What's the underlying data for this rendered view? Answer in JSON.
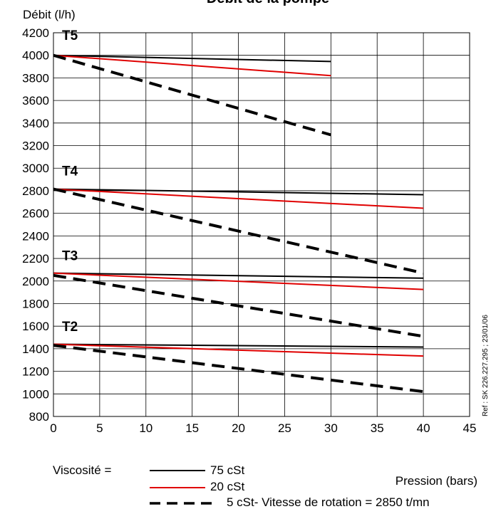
{
  "chart_data": {
    "type": "line",
    "title": "Débit de la pompe",
    "ylabel": "Débit (l/h)",
    "xlabel": "Pression (bars)",
    "xlim": [
      0,
      45
    ],
    "ylim": [
      800,
      4200
    ],
    "x_ticks": [
      0,
      5,
      10,
      15,
      20,
      25,
      30,
      35,
      40,
      45
    ],
    "y_ticks": [
      800,
      1000,
      1200,
      1400,
      1600,
      1800,
      2000,
      2200,
      2400,
      2600,
      2800,
      3000,
      3200,
      3400,
      3600,
      3800,
      4000,
      4200
    ],
    "grid": true,
    "colors": {
      "v75": "#000000",
      "v20": "#e00000",
      "v5": "#000000"
    },
    "groups": [
      {
        "label": "T5",
        "label_y": 4180,
        "series": [
          {
            "viscosity": "75 cSt",
            "style": "solid-black",
            "x": [
              0,
              30
            ],
            "y": [
              4000,
              3945
            ]
          },
          {
            "viscosity": "20 cSt",
            "style": "solid-red",
            "x": [
              0,
              30
            ],
            "y": [
              4000,
              3820
            ]
          },
          {
            "viscosity": "5 cSt",
            "style": "dashed-black",
            "x": [
              0,
              30
            ],
            "y": [
              4000,
              3295
            ]
          }
        ]
      },
      {
        "label": "T4",
        "label_y": 2980,
        "series": [
          {
            "viscosity": "75 cSt",
            "style": "solid-black",
            "x": [
              0,
              40
            ],
            "y": [
              2815,
              2765
            ]
          },
          {
            "viscosity": "20 cSt",
            "style": "solid-red",
            "x": [
              0,
              40
            ],
            "y": [
              2815,
              2645
            ]
          },
          {
            "viscosity": "5 cSt",
            "style": "dashed-black",
            "x": [
              0,
              40
            ],
            "y": [
              2815,
              2070
            ]
          }
        ]
      },
      {
        "label": "T3",
        "label_y": 2230,
        "series": [
          {
            "viscosity": "75 cSt",
            "style": "solid-black",
            "x": [
              0,
              40
            ],
            "y": [
              2070,
              2025
            ]
          },
          {
            "viscosity": "20 cSt",
            "style": "solid-red",
            "x": [
              0,
              40
            ],
            "y": [
              2070,
              1925
            ]
          },
          {
            "viscosity": "5 cSt",
            "style": "dashed-black",
            "x": [
              0,
              40
            ],
            "y": [
              2050,
              1510
            ]
          }
        ]
      },
      {
        "label": "T2",
        "label_y": 1600,
        "series": [
          {
            "viscosity": "75 cSt",
            "style": "solid-black",
            "x": [
              0,
              40
            ],
            "y": [
              1440,
              1415
            ]
          },
          {
            "viscosity": "20 cSt",
            "style": "solid-red",
            "x": [
              0,
              40
            ],
            "y": [
              1440,
              1335
            ]
          },
          {
            "viscosity": "5 cSt",
            "style": "dashed-black",
            "x": [
              0,
              40
            ],
            "y": [
              1430,
              1020
            ]
          }
        ]
      }
    ],
    "legend": {
      "prefix": "Viscosité  =",
      "entries": [
        {
          "label": "75 cSt",
          "style": "solid-black"
        },
        {
          "label": "20 cSt",
          "style": "solid-red"
        },
        {
          "label": "5 cSt- Vitesse de rotation = 2850 t/mn",
          "style": "dashed-black"
        }
      ]
    },
    "reference": "Ref : SK 226.227.295 ; 23/01/06"
  }
}
